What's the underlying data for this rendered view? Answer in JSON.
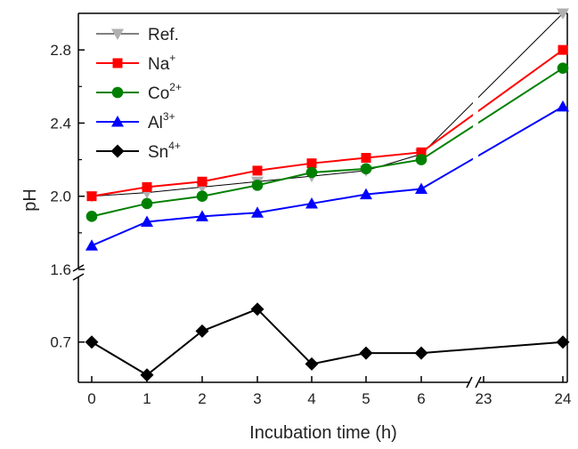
{
  "chart_data": {
    "type": "line",
    "xlabel": "Incubation time (h)",
    "ylabel": "pH",
    "x": [
      0,
      1,
      2,
      3,
      4,
      5,
      6,
      23,
      24
    ],
    "x_tick_labels": [
      "0",
      "1",
      "2",
      "3",
      "4",
      "5",
      "6",
      "23",
      "24"
    ],
    "x_break": [
      6,
      23
    ],
    "y_upper": {
      "range": [
        1.6,
        3.0
      ],
      "ticks": [
        1.6,
        2.0,
        2.4,
        2.8
      ],
      "tick_labels": [
        "1.6",
        "2.0",
        "2.4",
        "2.8"
      ]
    },
    "y_lower": {
      "range": [
        0.59,
        0.85
      ],
      "ticks": [
        0.7
      ],
      "tick_labels": [
        "0.7"
      ]
    },
    "legend_position": "top-left",
    "series": [
      {
        "name": "Ref.",
        "sup": "",
        "color": "#000000",
        "marker_color": "#b0b0b0",
        "marker": "triangle-down",
        "panel": "upper",
        "values": [
          2.0,
          2.02,
          2.05,
          2.08,
          2.11,
          2.14,
          2.23,
          null,
          3.0
        ]
      },
      {
        "name": "Na",
        "sup": "+",
        "color": "#ff0000",
        "marker_color": "#ff0000",
        "marker": "square",
        "panel": "upper",
        "values": [
          2.0,
          2.05,
          2.08,
          2.14,
          2.18,
          2.21,
          2.24,
          null,
          2.8
        ]
      },
      {
        "name": "Co",
        "sup": "2+",
        "color": "#008000",
        "marker_color": "#008000",
        "marker": "circle",
        "panel": "upper",
        "values": [
          1.89,
          1.96,
          2.0,
          2.06,
          2.13,
          2.15,
          2.2,
          null,
          2.7
        ]
      },
      {
        "name": "Al",
        "sup": "3+",
        "color": "#0000ff",
        "marker_color": "#0000ff",
        "marker": "triangle-up",
        "panel": "upper",
        "values": [
          1.73,
          1.86,
          1.89,
          1.91,
          1.96,
          2.01,
          2.04,
          null,
          2.49
        ]
      },
      {
        "name": "Sn",
        "sup": "4+",
        "color": "#000000",
        "marker_color": "#000000",
        "marker": "diamond",
        "panel": "lower",
        "values": [
          0.7,
          0.61,
          0.73,
          0.79,
          0.64,
          0.67,
          0.67,
          null,
          0.7
        ]
      }
    ]
  }
}
